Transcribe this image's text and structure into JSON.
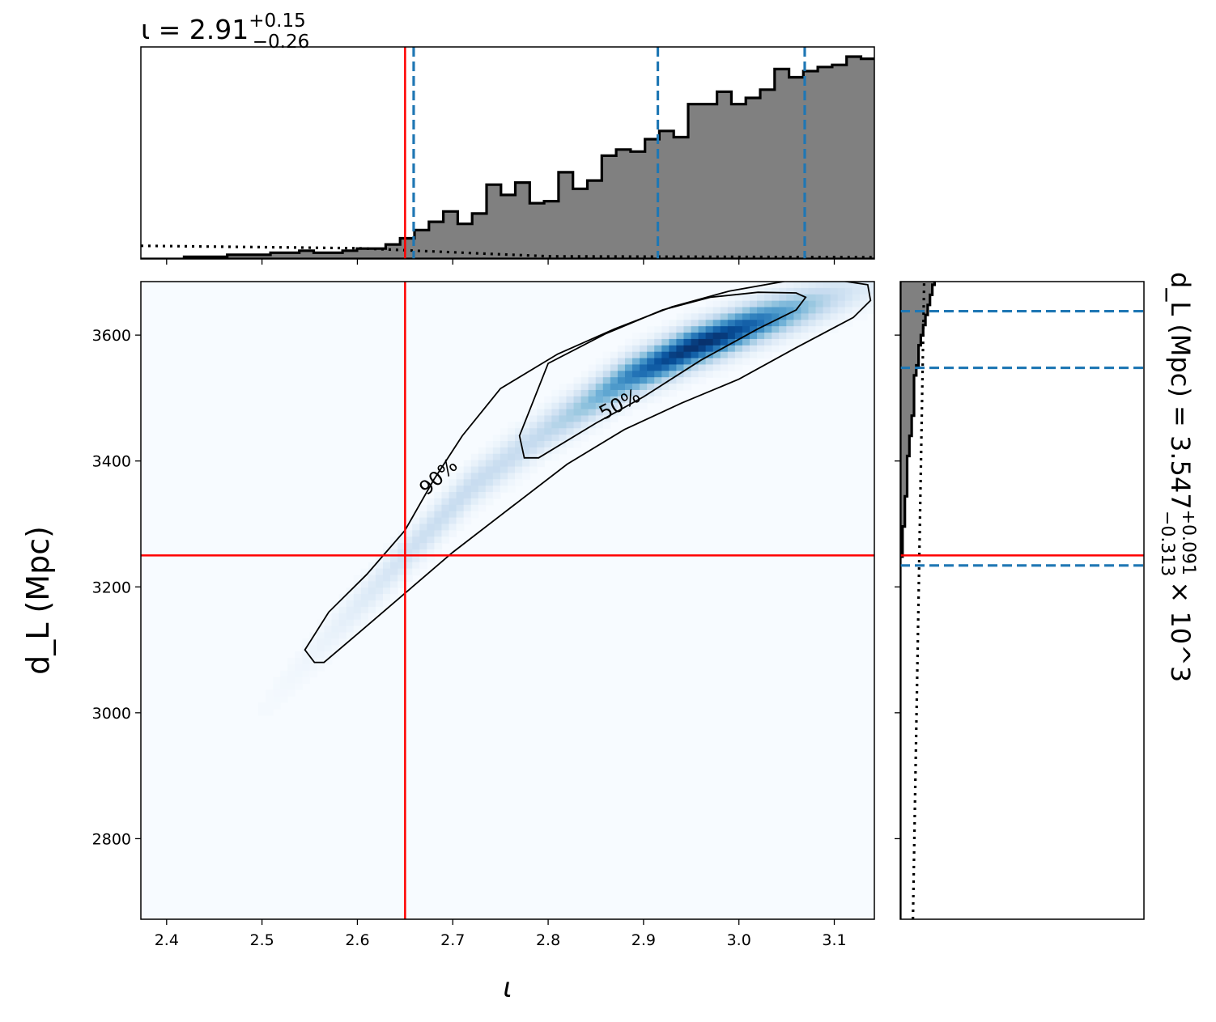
{
  "chart_data": {
    "type": "corner",
    "x_param": {
      "symbol": "ι",
      "xlabel": "ι",
      "title_prefix": "ι = 2.91",
      "title_sup": "+0.15",
      "title_sub": "−0.26",
      "xlim": [
        2.373,
        3.142
      ],
      "ticks": [
        2.4,
        2.5,
        2.6,
        2.7,
        2.8,
        2.9,
        3.0,
        3.1
      ],
      "tick_labels": [
        "2.4",
        "2.5",
        "2.6",
        "2.7",
        "2.8",
        "2.9",
        "3.0",
        "3.1"
      ],
      "injected": 2.65,
      "quantiles": [
        2.659,
        2.915,
        3.069
      ],
      "hist_edges_start": 2.373,
      "hist_bin_width": 0.0151,
      "hist_counts": [
        0,
        0,
        0,
        1,
        1,
        1,
        2,
        2,
        2,
        3,
        3,
        4,
        3,
        3,
        4,
        5,
        5,
        7,
        10,
        14,
        18,
        23,
        17,
        22,
        36,
        31,
        37,
        27,
        28,
        42,
        34,
        38,
        50,
        53,
        52,
        58,
        62,
        59,
        75,
        75,
        81,
        75,
        78,
        82,
        92,
        88,
        91,
        93,
        94,
        98,
        97,
        97,
        95,
        97,
        95,
        98,
        92,
        62,
        52,
        33,
        17,
        9,
        3,
        1
      ],
      "prior_start": 0.062,
      "prior_end": 0.008
    },
    "y_param": {
      "symbol": "d_L",
      "ylabel": "d_L (Mpc)",
      "title_prefix": "d_L (Mpc) = 3.547",
      "title_sup": "+0.091",
      "title_sub": "−0.313",
      "title_suffix": "× 10^3",
      "ylim": [
        2672,
        3685
      ],
      "ticks": [
        2800,
        3000,
        3200,
        3400,
        3600
      ],
      "tick_labels": [
        "2800",
        "3000",
        "3200",
        "3400",
        "3600"
      ],
      "injected": 3250,
      "quantiles": [
        3234,
        3548,
        3638
      ],
      "hist_edges_start": 2672,
      "hist_bin_width": 16,
      "hist_counts": [
        0,
        0,
        0,
        0,
        0,
        0,
        0,
        0,
        0,
        0,
        0,
        0,
        0,
        0,
        0,
        0,
        0,
        0,
        0,
        0,
        0,
        0,
        0,
        0,
        0,
        0,
        0,
        0,
        0,
        0,
        0,
        0,
        0,
        0,
        0,
        0,
        1,
        1,
        1,
        2,
        2,
        2,
        3,
        3,
        3,
        3,
        4,
        4,
        5,
        5,
        6,
        6,
        6,
        6,
        7,
        8,
        8,
        9,
        10,
        11,
        12,
        13,
        14,
        15,
        16,
        18,
        20,
        21,
        23,
        25,
        27,
        30,
        34,
        38,
        42,
        46,
        50,
        55,
        60,
        65,
        70,
        75,
        80,
        88,
        96,
        98,
        96,
        90,
        75,
        60,
        45
      ],
      "prior_left_frac": 0.098,
      "prior_right_frac": 0.052
    },
    "contours": [
      {
        "label": "90%",
        "level": 0.9
      },
      {
        "label": "50%",
        "level": 0.5
      }
    ],
    "colormap": "Blues",
    "colors": {
      "hist_fill": "#808080",
      "hist_edge": "#000000",
      "injection": "#ff0000",
      "quantile": "#1f77b4",
      "contour": "#000000"
    }
  }
}
